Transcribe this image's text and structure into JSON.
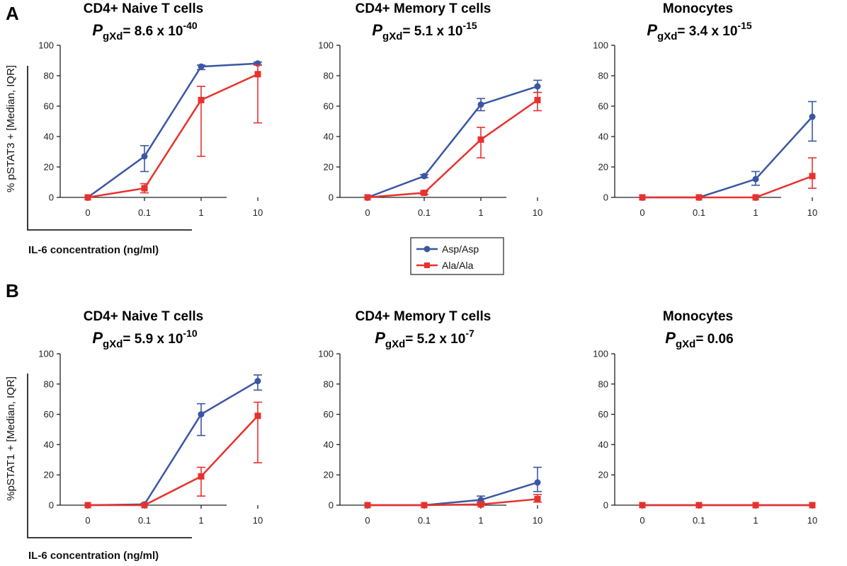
{
  "panels": [
    {
      "letter": "A",
      "ylabel": "% pSTAT3 + [Median, IQR]",
      "xlabel": "IL-6 concentration (ng/ml)"
    },
    {
      "letter": "B",
      "ylabel": "%pSTAT1 + [Median, IQR]",
      "xlabel": "IL-6 concentration (ng/ml)"
    }
  ],
  "legend": {
    "items": [
      {
        "label": "Asp/Asp",
        "color": "#3b56a3",
        "marker": "circle"
      },
      {
        "label": "Ala/Ala",
        "color": "#e8312e",
        "marker": "square"
      }
    ]
  },
  "colors": {
    "asp": "#3b56a3",
    "ala": "#e8312e",
    "axis": "#222222"
  },
  "chart_data": [
    {
      "type": "line",
      "panel": "A",
      "title": "CD4+ Naive T cells",
      "p_label": "P",
      "p_sub": "gXd",
      "p_mantissa": "= 8.6 x 10",
      "p_exp": "-40",
      "categories": [
        "0",
        "0.1",
        "1",
        "10"
      ],
      "ylim": [
        0,
        100
      ],
      "yticks": [
        0,
        20,
        40,
        60,
        80,
        100
      ],
      "series": [
        {
          "name": "Asp/Asp",
          "values": [
            0,
            27,
            86,
            88
          ],
          "err_low": [
            0,
            17,
            84,
            87
          ],
          "err_high": [
            0,
            34,
            87,
            89
          ]
        },
        {
          "name": "Ala/Ala",
          "values": [
            0,
            6,
            64,
            81
          ],
          "err_low": [
            0,
            3,
            27,
            49
          ],
          "err_high": [
            0,
            9,
            73,
            87
          ]
        }
      ]
    },
    {
      "type": "line",
      "panel": "A",
      "title": "CD4+ Memory T cells",
      "p_label": "P",
      "p_sub": "gXd",
      "p_mantissa": "= 5.1 x 10",
      "p_exp": "-15",
      "categories": [
        "0",
        "0.1",
        "1",
        "10"
      ],
      "ylim": [
        0,
        100
      ],
      "yticks": [
        0,
        20,
        40,
        60,
        80,
        100
      ],
      "series": [
        {
          "name": "Asp/Asp",
          "values": [
            0,
            14,
            61,
            73
          ],
          "err_low": [
            0,
            13,
            57,
            69
          ],
          "err_high": [
            0,
            15,
            65,
            77
          ]
        },
        {
          "name": "Ala/Ala",
          "values": [
            0,
            3,
            38,
            64
          ],
          "err_low": [
            0,
            2,
            26,
            57
          ],
          "err_high": [
            0,
            4,
            46,
            69
          ]
        }
      ]
    },
    {
      "type": "line",
      "panel": "A",
      "title": "Monocytes",
      "p_label": "P",
      "p_sub": "gXd",
      "p_mantissa": "= 3.4 x 10",
      "p_exp": "-15",
      "categories": [
        "0",
        "0.1",
        "1",
        "10"
      ],
      "ylim": [
        0,
        100
      ],
      "yticks": [
        0,
        20,
        40,
        60,
        80,
        100
      ],
      "series": [
        {
          "name": "Asp/Asp",
          "values": [
            0,
            0,
            12,
            53
          ],
          "err_low": [
            0,
            0,
            8,
            37
          ],
          "err_high": [
            0,
            0,
            17,
            63
          ]
        },
        {
          "name": "Ala/Ala",
          "values": [
            0,
            0,
            0,
            14
          ],
          "err_low": [
            0,
            0,
            0,
            6
          ],
          "err_high": [
            0,
            0,
            0,
            26
          ]
        }
      ]
    },
    {
      "type": "line",
      "panel": "B",
      "title": "CD4+ Naive T cells",
      "p_label": "P",
      "p_sub": "gXd",
      "p_mantissa": "= 5.9 x 10",
      "p_exp": "-10",
      "categories": [
        "0",
        "0.1",
        "1",
        "10"
      ],
      "ylim": [
        0,
        100
      ],
      "yticks": [
        0,
        20,
        40,
        60,
        80,
        100
      ],
      "series": [
        {
          "name": "Asp/Asp",
          "values": [
            0,
            0.5,
            60,
            82
          ],
          "err_low": [
            0,
            0,
            46,
            76
          ],
          "err_high": [
            0,
            1,
            67,
            86
          ]
        },
        {
          "name": "Ala/Ala",
          "values": [
            0,
            0,
            19,
            59
          ],
          "err_low": [
            0,
            0,
            6,
            28
          ],
          "err_high": [
            0,
            0,
            25,
            68
          ]
        }
      ]
    },
    {
      "type": "line",
      "panel": "B",
      "title": "CD4+ Memory T cells",
      "p_label": "P",
      "p_sub": "gXd",
      "p_mantissa": "= 5.2 x 10",
      "p_exp": "-7",
      "categories": [
        "0",
        "0.1",
        "1",
        "10"
      ],
      "ylim": [
        0,
        100
      ],
      "yticks": [
        0,
        20,
        40,
        60,
        80,
        100
      ],
      "series": [
        {
          "name": "Asp/Asp",
          "values": [
            0,
            0,
            3.5,
            15
          ],
          "err_low": [
            0,
            0,
            2,
            9
          ],
          "err_high": [
            0,
            0,
            6,
            25
          ]
        },
        {
          "name": "Ala/Ala",
          "values": [
            0,
            0,
            0.5,
            4
          ],
          "err_low": [
            0,
            0,
            0,
            2
          ],
          "err_high": [
            0,
            0,
            1,
            7
          ]
        }
      ]
    },
    {
      "type": "line",
      "panel": "B",
      "title": "Monocytes",
      "p_label": "P",
      "p_sub": "gXd",
      "p_mantissa": "= 0.06",
      "p_exp": "",
      "categories": [
        "0",
        "0.1",
        "1",
        "10"
      ],
      "ylim": [
        0,
        100
      ],
      "yticks": [
        0,
        20,
        40,
        60,
        80,
        100
      ],
      "series": [
        {
          "name": "Asp/Asp",
          "values": [
            0,
            0,
            0,
            0
          ],
          "err_low": [
            0,
            0,
            0,
            0
          ],
          "err_high": [
            0,
            0,
            0,
            0
          ]
        },
        {
          "name": "Ala/Ala",
          "values": [
            0,
            0,
            0,
            0
          ],
          "err_low": [
            0,
            0,
            0,
            0
          ],
          "err_high": [
            0,
            0,
            0,
            0
          ]
        }
      ]
    }
  ]
}
